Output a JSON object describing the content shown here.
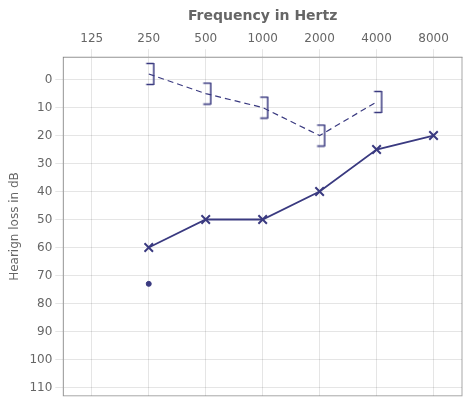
{
  "chart_data": {
    "type": "line",
    "xlabel": "Frequency in Hertz",
    "ylabel": "Hearign loss in dB",
    "categories": [
      "125",
      "250",
      "500",
      "1000",
      "2000",
      "4000",
      "8000"
    ],
    "series": [
      {
        "values": [
          null,
          60,
          50,
          50,
          40,
          25,
          20
        ],
        "color": "#3a3a80",
        "marker": "x",
        "line_style": "solid"
      },
      {
        "values": [
          null,
          -2,
          5,
          10,
          20,
          8,
          null
        ],
        "color": "#3a3a80",
        "marker": "bracket",
        "line_style": "dashed"
      },
      {
        "values": [
          null,
          73,
          null,
          null,
          null,
          null,
          null
        ],
        "color": "#3a3a80",
        "marker": "dot",
        "line_style": "none"
      }
    ],
    "ylim": [
      113,
      -8
    ],
    "yticks": [
      0,
      10,
      20,
      30,
      40,
      50,
      60,
      70,
      80,
      90,
      100,
      110
    ],
    "grid": true
  }
}
